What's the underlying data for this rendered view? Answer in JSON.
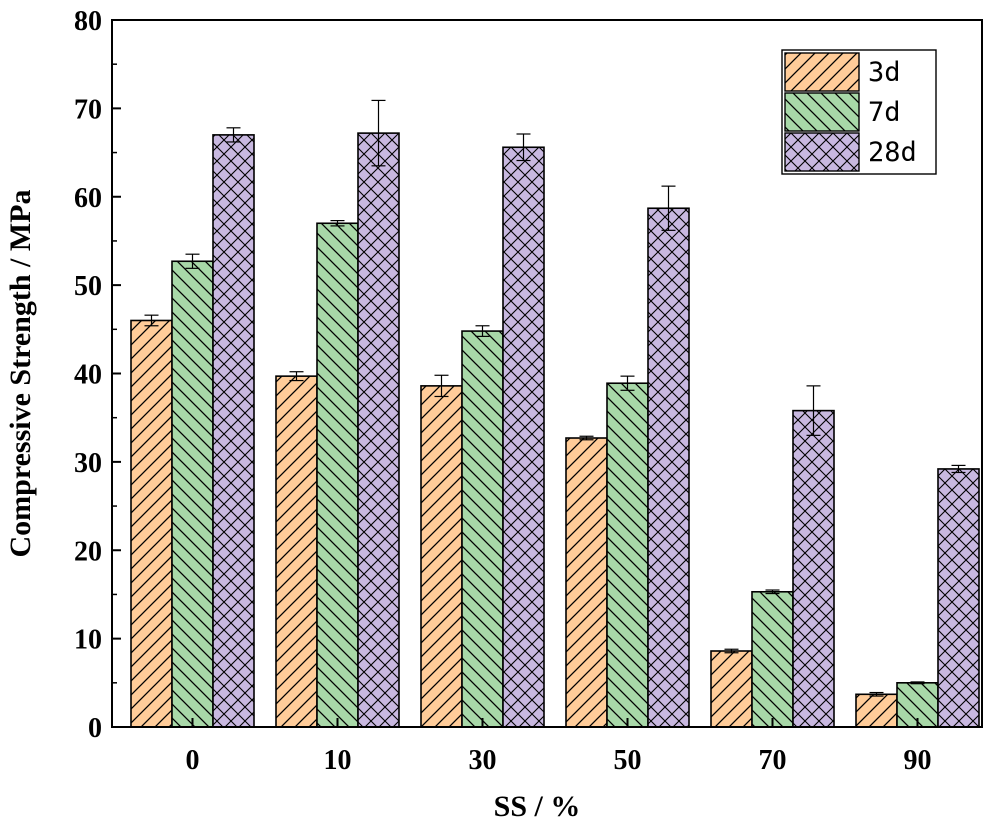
{
  "chart_data": {
    "type": "bar",
    "title": "",
    "xlabel": "SS / %",
    "ylabel": "Compressive Strength / MPa",
    "categories": [
      "0",
      "10",
      "30",
      "50",
      "70",
      "90"
    ],
    "ylim": [
      0,
      80
    ],
    "yticks": [
      0,
      10,
      20,
      30,
      40,
      50,
      60,
      70,
      80
    ],
    "grid": false,
    "legend_position": "top-right",
    "series": [
      {
        "name": "3d",
        "color": "#ffcc99",
        "pattern": "diagonal-forward",
        "values": [
          46.0,
          39.7,
          38.6,
          32.7,
          8.6,
          3.7
        ],
        "errors": [
          0.6,
          0.5,
          1.2,
          0.2,
          0.2,
          0.2
        ]
      },
      {
        "name": "7d",
        "color": "#a8d8a8",
        "pattern": "diagonal-backward",
        "values": [
          52.7,
          57.0,
          44.8,
          38.9,
          15.3,
          5.0
        ],
        "errors": [
          0.8,
          0.3,
          0.6,
          0.8,
          0.2,
          0.1
        ]
      },
      {
        "name": "28d",
        "color": "#c8b8e0",
        "pattern": "crosshatch",
        "values": [
          67.0,
          67.2,
          65.6,
          58.7,
          35.8,
          29.2
        ],
        "errors": [
          0.8,
          3.7,
          1.5,
          2.5,
          2.8,
          0.4
        ]
      }
    ]
  }
}
